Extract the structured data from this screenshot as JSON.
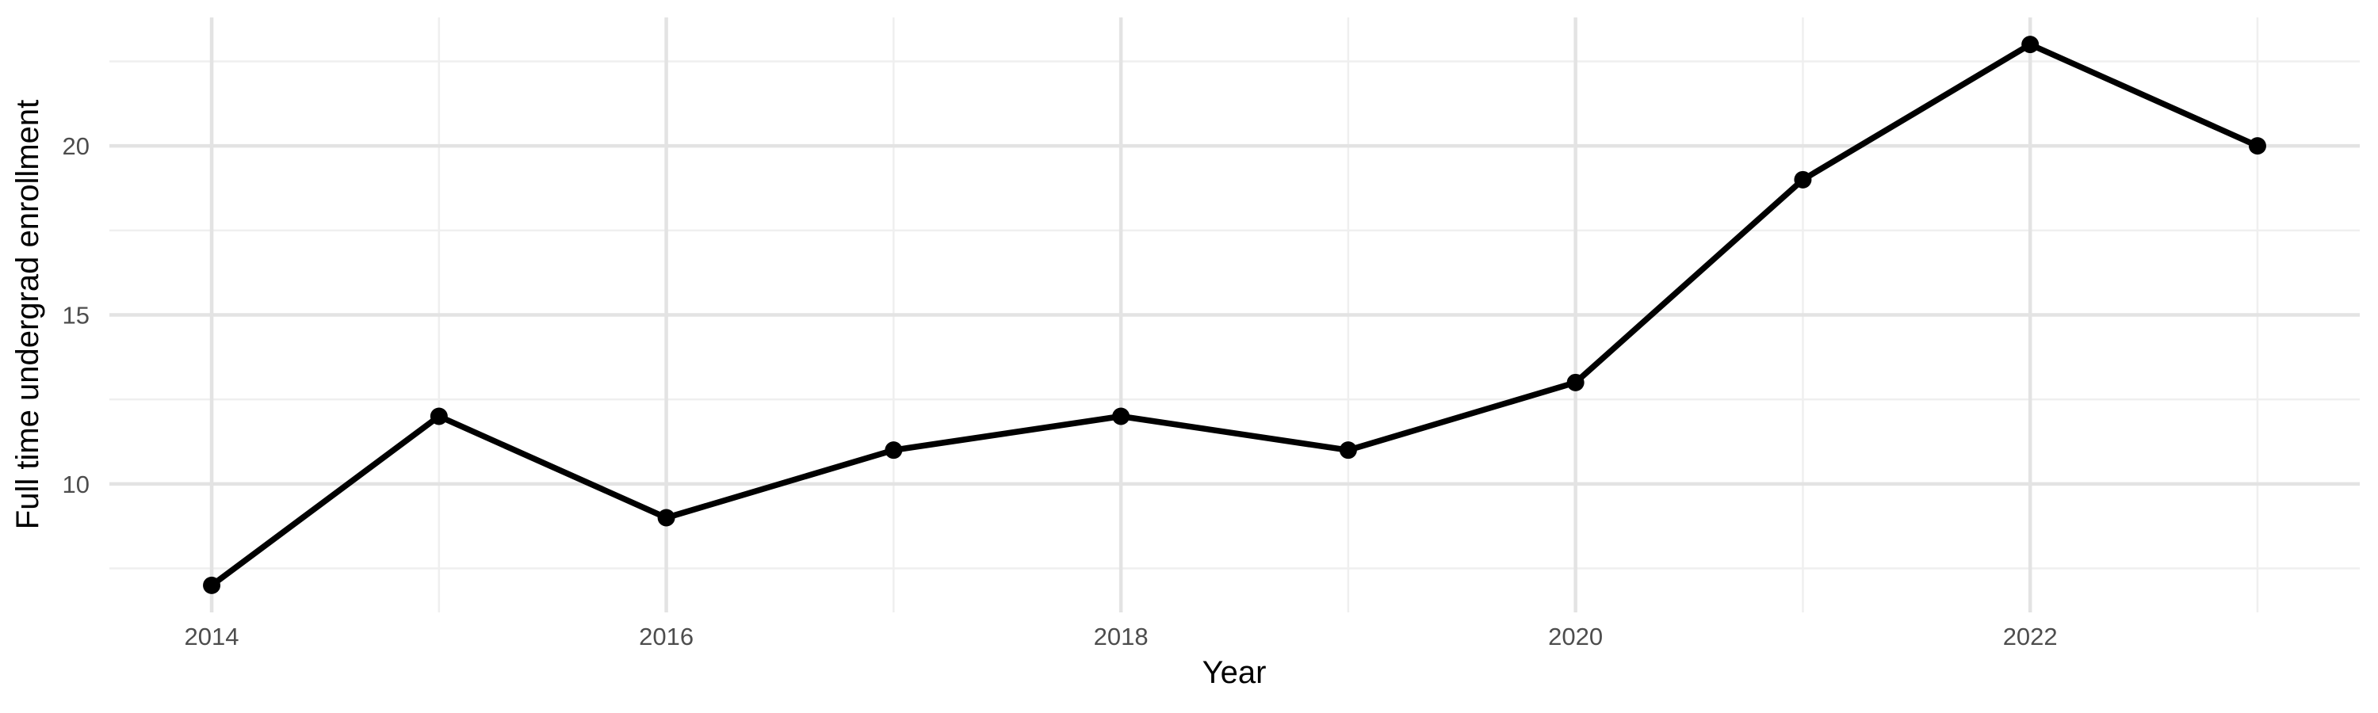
{
  "figure": {
    "background": "#FFFFFF"
  },
  "chart_data": {
    "type": "line",
    "title": "",
    "xlabel": "Year",
    "ylabel": "Full time undergrad enrollment",
    "x": [
      2014,
      2015,
      2016,
      2017,
      2018,
      2019,
      2020,
      2021,
      2022,
      2023
    ],
    "values": [
      7,
      12,
      9,
      11,
      12,
      11,
      13,
      19,
      23,
      20
    ],
    "series_name": "Full time undergrad enrollment",
    "x_ticks": [
      2014,
      2016,
      2018,
      2020,
      2022
    ],
    "y_ticks": [
      10,
      15,
      20
    ],
    "x_minor_gridlines": [
      2015,
      2017,
      2019,
      2021,
      2023
    ],
    "y_minor_gridlines": [
      7.5,
      12.5,
      17.5,
      22.5
    ],
    "xlim": [
      2013.55,
      2023.45
    ],
    "ylim": [
      6.2,
      23.8
    ],
    "grid": "major+minor",
    "legend": "none",
    "marker": "filled-circle",
    "colors": {
      "background": "#FFFFFF",
      "line": "#000000",
      "point": "#000000",
      "grid_major": "#E3E3E3",
      "grid_minor": "#EFEFEF",
      "tick_label": "#4D4D4D",
      "axis_title": "#000000"
    }
  }
}
